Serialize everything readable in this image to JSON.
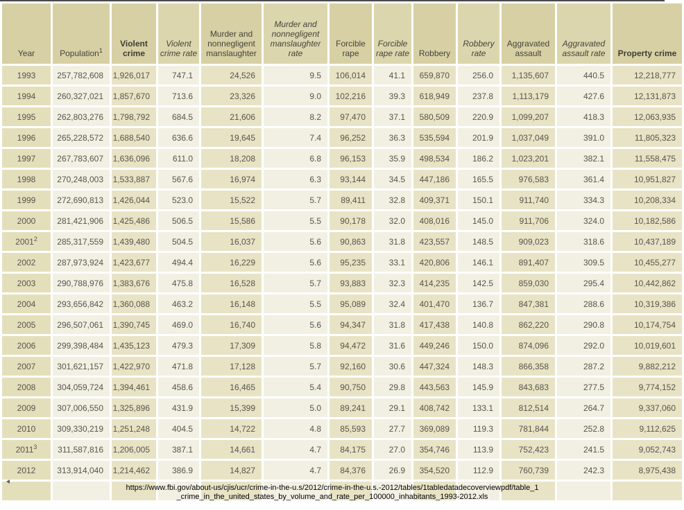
{
  "chart_data": {
    "type": "table",
    "columns": [
      {
        "label": "Year"
      },
      {
        "label": "Population",
        "sup": "1"
      },
      {
        "label": "Violent crime"
      },
      {
        "label": "Violent crime rate"
      },
      {
        "label": "Murder and nonnegligent manslaughter"
      },
      {
        "label": "Murder and nonnegligent manslaughter rate"
      },
      {
        "label": "Forcible rape"
      },
      {
        "label": "Forcible rape rate"
      },
      {
        "label": "Robbery"
      },
      {
        "label": "Robbery rate"
      },
      {
        "label": "Aggravated assault"
      },
      {
        "label": "Aggravated assault rate"
      },
      {
        "label": "Property crime"
      }
    ],
    "rows": [
      {
        "year": "1993",
        "cells": [
          "257,782,608",
          "1,926,017",
          "747.1",
          "24,526",
          "9.5",
          "106,014",
          "41.1",
          "659,870",
          "256.0",
          "1,135,607",
          "440.5",
          "12,218,777"
        ]
      },
      {
        "year": "1994",
        "cells": [
          "260,327,021",
          "1,857,670",
          "713.6",
          "23,326",
          "9.0",
          "102,216",
          "39.3",
          "618,949",
          "237.8",
          "1,113,179",
          "427.6",
          "12,131,873"
        ]
      },
      {
        "year": "1995",
        "cells": [
          "262,803,276",
          "1,798,792",
          "684.5",
          "21,606",
          "8.2",
          "97,470",
          "37.1",
          "580,509",
          "220.9",
          "1,099,207",
          "418.3",
          "12,063,935"
        ]
      },
      {
        "year": "1996",
        "cells": [
          "265,228,572",
          "1,688,540",
          "636.6",
          "19,645",
          "7.4",
          "96,252",
          "36.3",
          "535,594",
          "201.9",
          "1,037,049",
          "391.0",
          "11,805,323"
        ]
      },
      {
        "year": "1997",
        "cells": [
          "267,783,607",
          "1,636,096",
          "611.0",
          "18,208",
          "6.8",
          "96,153",
          "35.9",
          "498,534",
          "186.2",
          "1,023,201",
          "382.1",
          "11,558,475"
        ]
      },
      {
        "year": "1998",
        "cells": [
          "270,248,003",
          "1,533,887",
          "567.6",
          "16,974",
          "6.3",
          "93,144",
          "34.5",
          "447,186",
          "165.5",
          "976,583",
          "361.4",
          "10,951,827"
        ]
      },
      {
        "year": "1999",
        "cells": [
          "272,690,813",
          "1,426,044",
          "523.0",
          "15,522",
          "5.7",
          "89,411",
          "32.8",
          "409,371",
          "150.1",
          "911,740",
          "334.3",
          "10,208,334"
        ]
      },
      {
        "year": "2000",
        "cells": [
          "281,421,906",
          "1,425,486",
          "506.5",
          "15,586",
          "5.5",
          "90,178",
          "32.0",
          "408,016",
          "145.0",
          "911,706",
          "324.0",
          "10,182,586"
        ]
      },
      {
        "year": "2001",
        "sup": "2",
        "cells": [
          "285,317,559",
          "1,439,480",
          "504.5",
          "16,037",
          "5.6",
          "90,863",
          "31.8",
          "423,557",
          "148.5",
          "909,023",
          "318.6",
          "10,437,189"
        ]
      },
      {
        "year": "2002",
        "cells": [
          "287,973,924",
          "1,423,677",
          "494.4",
          "16,229",
          "5.6",
          "95,235",
          "33.1",
          "420,806",
          "146.1",
          "891,407",
          "309.5",
          "10,455,277"
        ]
      },
      {
        "year": "2003",
        "cells": [
          "290,788,976",
          "1,383,676",
          "475.8",
          "16,528",
          "5.7",
          "93,883",
          "32.3",
          "414,235",
          "142.5",
          "859,030",
          "295.4",
          "10,442,862"
        ]
      },
      {
        "year": "2004",
        "cells": [
          "293,656,842",
          "1,360,088",
          "463.2",
          "16,148",
          "5.5",
          "95,089",
          "32.4",
          "401,470",
          "136.7",
          "847,381",
          "288.6",
          "10,319,386"
        ]
      },
      {
        "year": "2005",
        "cells": [
          "296,507,061",
          "1,390,745",
          "469.0",
          "16,740",
          "5.6",
          "94,347",
          "31.8",
          "417,438",
          "140.8",
          "862,220",
          "290.8",
          "10,174,754"
        ]
      },
      {
        "year": "2006",
        "cells": [
          "299,398,484",
          "1,435,123",
          "479.3",
          "17,309",
          "5.8",
          "94,472",
          "31.6",
          "449,246",
          "150.0",
          "874,096",
          "292.0",
          "10,019,601"
        ]
      },
      {
        "year": "2007",
        "cells": [
          "301,621,157",
          "1,422,970",
          "471.8",
          "17,128",
          "5.7",
          "92,160",
          "30.6",
          "447,324",
          "148.3",
          "866,358",
          "287.2",
          "9,882,212"
        ]
      },
      {
        "year": "2008",
        "cells": [
          "304,059,724",
          "1,394,461",
          "458.6",
          "16,465",
          "5.4",
          "90,750",
          "29.8",
          "443,563",
          "145.9",
          "843,683",
          "277.5",
          "9,774,152"
        ]
      },
      {
        "year": "2009",
        "cells": [
          "307,006,550",
          "1,325,896",
          "431.9",
          "15,399",
          "5.0",
          "89,241",
          "29.1",
          "408,742",
          "133.1",
          "812,514",
          "264.7",
          "9,337,060"
        ]
      },
      {
        "year": "2010",
        "cells": [
          "309,330,219",
          "1,251,248",
          "404.5",
          "14,722",
          "4.8",
          "85,593",
          "27.7",
          "369,089",
          "119.3",
          "781,844",
          "252.8",
          "9,112,625"
        ]
      },
      {
        "year": "2011",
        "sup": "3",
        "cells": [
          "311,587,816",
          "1,206,005",
          "387.1",
          "14,661",
          "4.7",
          "84,175",
          "27.0",
          "354,746",
          "113.9",
          "752,423",
          "241.5",
          "9,052,743"
        ]
      },
      {
        "year": "2012",
        "cells": [
          "313,914,040",
          "1,214,462",
          "386.9",
          "14,827",
          "4.7",
          "84,376",
          "26.9",
          "354,520",
          "112.9",
          "760,739",
          "242.3",
          "8,975,438"
        ]
      }
    ]
  },
  "footer": {
    "source_url_line1": "https://www.fbi.gov/about-us/cjis/ucr/crime-in-the-u.s/2012/crime-in-the-u.s.-2012/tables/1tabledatadecoverviewpdf/table_1",
    "source_url_line2": "_crime_in_the_united_states_by_volume_and_rate_per_100000_inhabitants_1993-2012.xls"
  },
  "colors": {
    "header_bg": "#d7d0a4",
    "header_bg_rate": "#dcd6ae",
    "cell_tan": "#e8e3c5",
    "cell_cream": "#f2f0e3",
    "year_cell_bg": "#e4dfbb",
    "grid": "#ffffff",
    "top_border": "#4a4a4a",
    "body_text": "#57544b",
    "header_text": "#45433a",
    "footer_text": "#000000"
  }
}
